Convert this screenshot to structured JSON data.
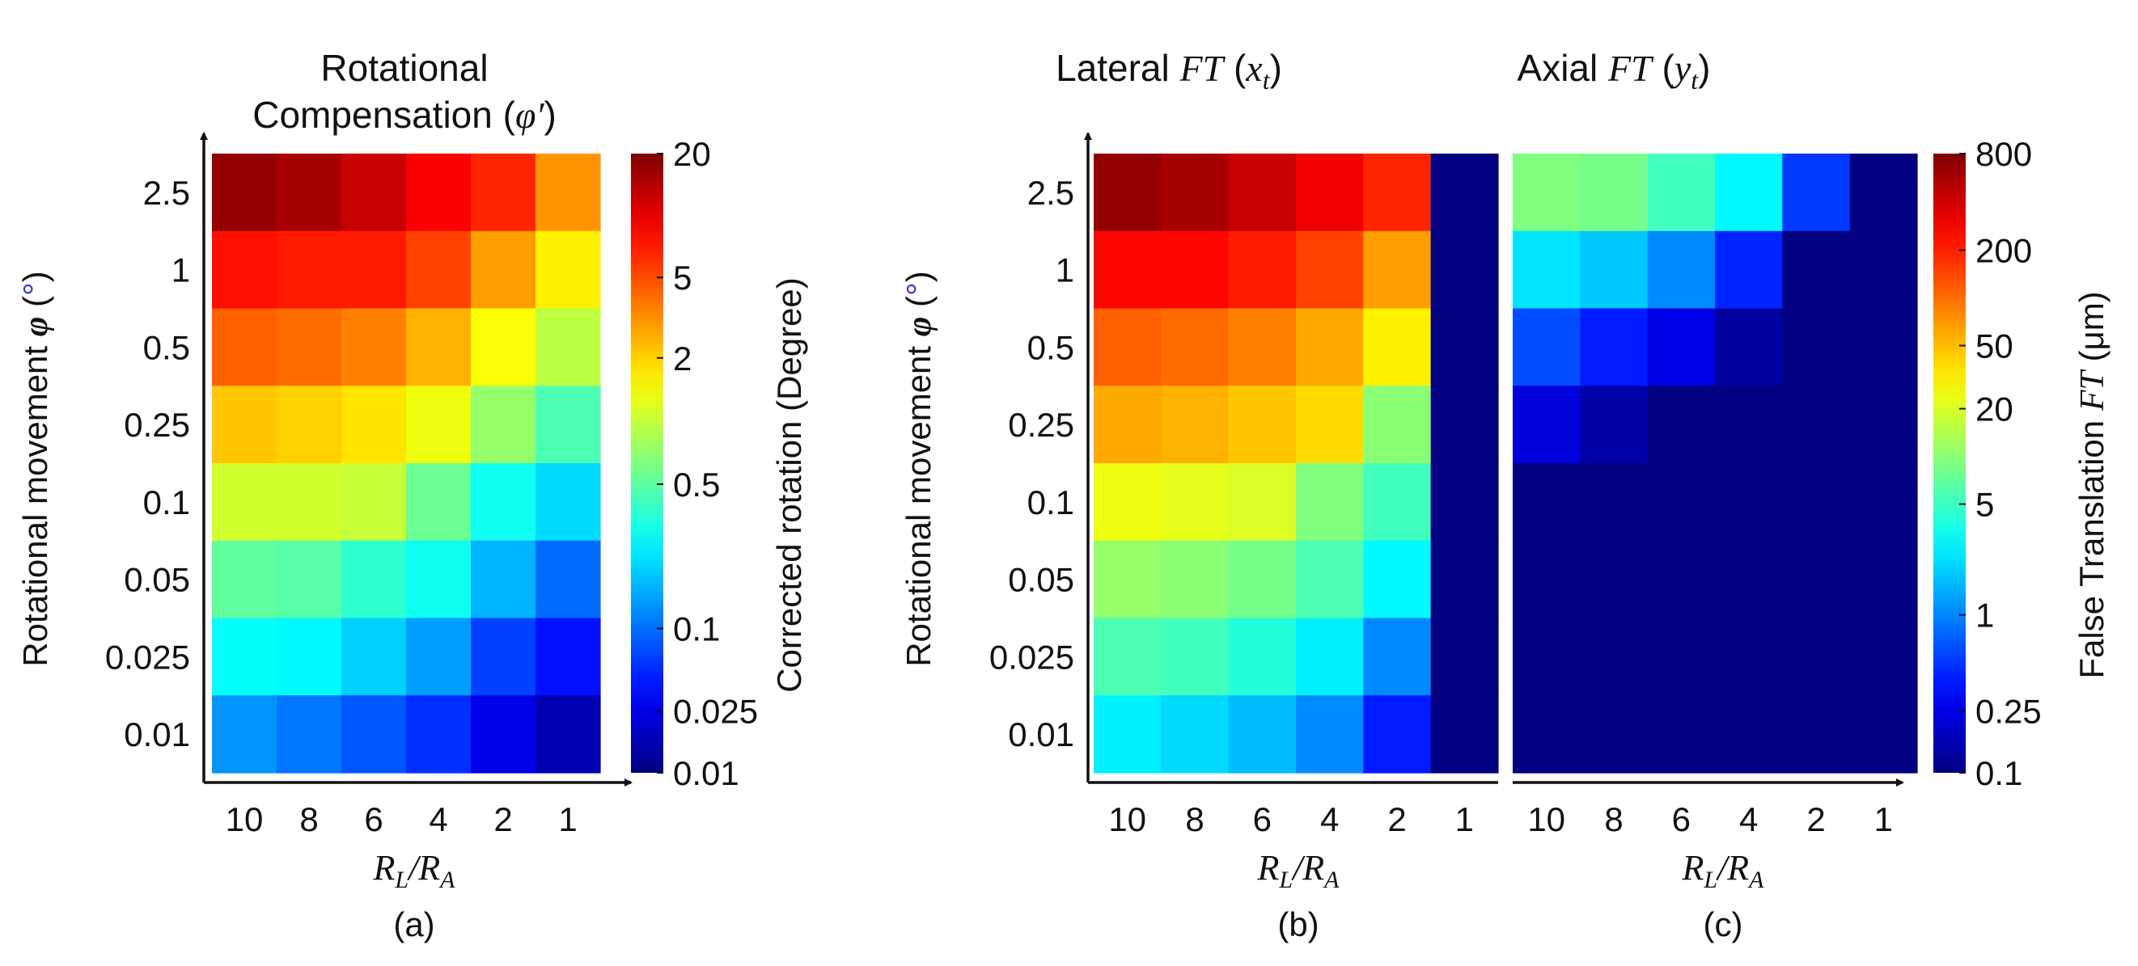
{
  "chart_data": [
    {
      "panel": "(a)",
      "type": "heatmap",
      "title_line1": "Rotational",
      "title_line2": "Compensation (",
      "title_symbol": "φ′",
      "title_close": ")",
      "ylabel": "Rotational movement",
      "ylabel_symbol": "φ",
      "ylabel_unit": "°",
      "xlabel_main": "R",
      "xlabel_sub1": "L",
      "xlabel_sep": "/R",
      "xlabel_sub2": "A",
      "categories_x": [
        "10",
        "8",
        "6",
        "4",
        "2",
        "1"
      ],
      "categories_y": [
        "2.5",
        "1",
        "0.5",
        "0.25",
        "0.1",
        "0.05",
        "0.025",
        "0.01"
      ],
      "colorscale": "jet",
      "values": [
        [
          0.98,
          0.96,
          0.93,
          0.88,
          0.84,
          0.73
        ],
        [
          0.86,
          0.85,
          0.85,
          0.81,
          0.72,
          0.64
        ],
        [
          0.78,
          0.77,
          0.75,
          0.7,
          0.62,
          0.56
        ],
        [
          0.68,
          0.67,
          0.65,
          0.61,
          0.52,
          0.45
        ],
        [
          0.58,
          0.58,
          0.57,
          0.48,
          0.39,
          0.34
        ],
        [
          0.47,
          0.46,
          0.42,
          0.39,
          0.3,
          0.23
        ],
        [
          0.38,
          0.37,
          0.33,
          0.28,
          0.19,
          0.14
        ],
        [
          0.27,
          0.24,
          0.21,
          0.17,
          0.1,
          0.05
        ]
      ],
      "colorbar": {
        "label": "Corrected rotation (Degree)",
        "ticks": [
          "20",
          "5",
          "2",
          "0.5",
          "0.1",
          "0.025",
          "0.01"
        ],
        "tick_fractions": [
          1.0,
          0.8,
          0.67,
          0.466,
          0.233,
          0.1,
          0.0
        ]
      }
    },
    {
      "panel": "(b)",
      "type": "heatmap",
      "title_pre": "Lateral ",
      "title_ft": "FT",
      "title_open": " (",
      "title_var": "x",
      "title_sub": "t",
      "title_close": ")",
      "ylabel": "Rotational movement",
      "ylabel_symbol": "φ",
      "ylabel_unit": "°",
      "xlabel_main": "R",
      "xlabel_sub1": "L",
      "xlabel_sep": "/R",
      "xlabel_sub2": "A",
      "categories_x": [
        "10",
        "8",
        "6",
        "4",
        "2",
        "1"
      ],
      "categories_y": [
        "2.5",
        "1",
        "0.5",
        "0.25",
        "0.1",
        "0.05",
        "0.025",
        "0.01"
      ],
      "colorscale": "jet",
      "values": [
        [
          0.98,
          0.96,
          0.93,
          0.89,
          0.84,
          0.0
        ],
        [
          0.87,
          0.87,
          0.85,
          0.81,
          0.72,
          0.0
        ],
        [
          0.78,
          0.77,
          0.75,
          0.71,
          0.64,
          0.0
        ],
        [
          0.71,
          0.7,
          0.68,
          0.66,
          0.51,
          0.0
        ],
        [
          0.61,
          0.6,
          0.59,
          0.5,
          0.44,
          0.0
        ],
        [
          0.52,
          0.51,
          0.49,
          0.45,
          0.37,
          0.0
        ],
        [
          0.45,
          0.44,
          0.41,
          0.36,
          0.26,
          0.0
        ],
        [
          0.36,
          0.34,
          0.31,
          0.26,
          0.15,
          0.0
        ]
      ]
    },
    {
      "panel": "(c)",
      "type": "heatmap",
      "title_pre": "Axial ",
      "title_ft": "FT",
      "title_open": " (",
      "title_var": "y",
      "title_sub": "t",
      "title_close": ")",
      "xlabel_main": "R",
      "xlabel_sub1": "L",
      "xlabel_sep": "/R",
      "xlabel_sub2": "A",
      "categories_x": [
        "10",
        "8",
        "6",
        "4",
        "2",
        "1"
      ],
      "categories_y": [
        "2.5",
        "1",
        "0.5",
        "0.25",
        "0.1",
        "0.05",
        "0.025",
        "0.01"
      ],
      "colorscale": "jet",
      "values": [
        [
          0.5,
          0.49,
          0.44,
          0.37,
          0.18,
          0.0
        ],
        [
          0.35,
          0.32,
          0.26,
          0.16,
          0.0,
          0.0
        ],
        [
          0.2,
          0.15,
          0.1,
          0.03,
          0.0,
          0.0
        ],
        [
          0.09,
          0.04,
          0.0,
          0.0,
          0.0,
          0.0
        ],
        [
          0.0,
          0.0,
          0.0,
          0.0,
          0.0,
          0.0
        ],
        [
          0.0,
          0.0,
          0.0,
          0.0,
          0.0,
          0.0
        ],
        [
          0.0,
          0.0,
          0.0,
          0.0,
          0.0,
          0.0
        ],
        [
          0.0,
          0.0,
          0.0,
          0.0,
          0.0,
          0.0
        ]
      ],
      "colorbar": {
        "label_pre": "False Translation ",
        "label_ft": "FT",
        "label_post": " (μm)",
        "ticks": [
          "800",
          "200",
          "50",
          "20",
          "5",
          "1",
          "0.25",
          "0.1"
        ],
        "tick_fractions": [
          1.0,
          0.844,
          0.69,
          0.588,
          0.434,
          0.255,
          0.1,
          0.0
        ]
      }
    }
  ]
}
